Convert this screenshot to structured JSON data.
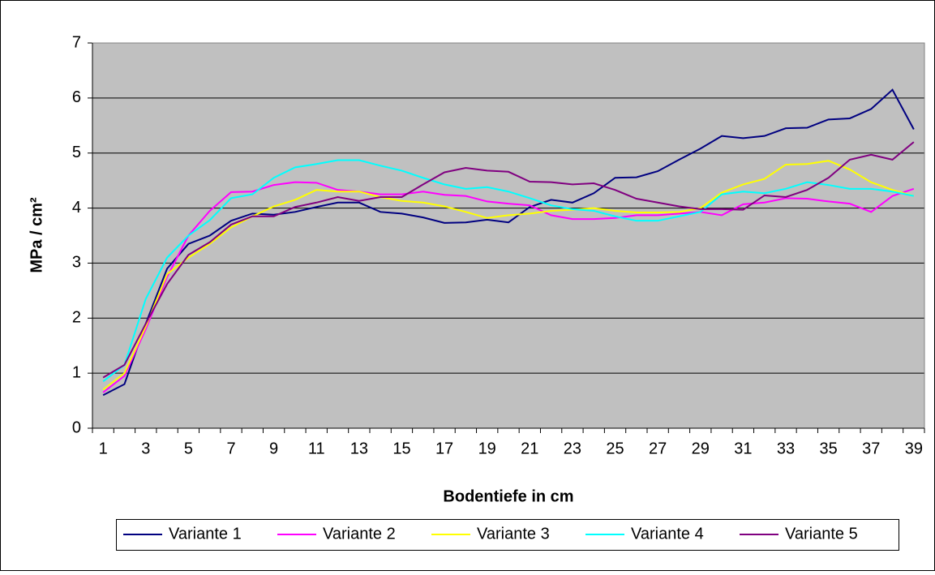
{
  "chart_data": {
    "type": "line",
    "y_label": "MPa / cm²",
    "x_label": "Bodentiefe in cm",
    "categories": [
      "1",
      null,
      "3",
      null,
      "5",
      null,
      "7",
      null,
      "9",
      null,
      "11",
      null,
      "13",
      null,
      "15",
      null,
      "17",
      null,
      "19",
      null,
      "21",
      null,
      "23",
      null,
      "25",
      null,
      "27",
      null,
      "29",
      null,
      "31",
      null,
      "33",
      null,
      "35",
      null,
      "37",
      null,
      "39"
    ],
    "ylim": [
      0,
      7
    ],
    "yticks": [
      0,
      1,
      2,
      3,
      4,
      5,
      6,
      7
    ],
    "grid": true,
    "legend": "bottom",
    "series": [
      {
        "name": "Variante 1",
        "color": "#000080",
        "values": [
          0.6,
          0.8,
          1.9,
          2.9,
          3.35,
          3.5,
          3.77,
          3.9,
          3.88,
          3.93,
          4.02,
          4.1,
          4.1,
          3.93,
          3.9,
          3.83,
          3.73,
          3.74,
          3.79,
          3.74,
          4.02,
          4.15,
          4.1,
          4.27,
          4.55,
          4.56,
          4.67,
          4.88,
          5.08,
          5.31,
          5.27,
          5.31,
          5.45,
          5.46,
          5.61,
          5.63,
          5.8,
          6.15,
          5.43
        ]
      },
      {
        "name": "Variante 2",
        "color": "#ff00ff",
        "values": [
          0.65,
          0.95,
          1.8,
          2.75,
          3.5,
          3.95,
          4.29,
          4.3,
          4.42,
          4.47,
          4.46,
          4.33,
          4.3,
          4.25,
          4.25,
          4.3,
          4.24,
          4.22,
          4.12,
          4.08,
          4.05,
          3.87,
          3.8,
          3.8,
          3.82,
          3.87,
          3.87,
          3.9,
          3.93,
          3.87,
          4.07,
          4.1,
          4.18,
          4.17,
          4.12,
          4.08,
          3.93,
          4.22,
          4.35
        ]
      },
      {
        "name": "Variante 3",
        "color": "#ffff00",
        "values": [
          0.7,
          1.0,
          1.85,
          2.8,
          3.1,
          3.35,
          3.65,
          3.85,
          4.03,
          4.15,
          4.33,
          4.3,
          4.3,
          4.2,
          4.13,
          4.1,
          4.03,
          3.93,
          3.82,
          3.87,
          3.9,
          3.95,
          3.97,
          4.0,
          3.95,
          3.92,
          3.92,
          3.93,
          4.0,
          4.28,
          4.43,
          4.53,
          4.79,
          4.8,
          4.86,
          4.7,
          4.47,
          4.33,
          4.22
        ]
      },
      {
        "name": "Variante 4",
        "color": "#00ffff",
        "values": [
          0.85,
          1.15,
          2.35,
          3.1,
          3.5,
          3.78,
          4.18,
          4.25,
          4.55,
          4.74,
          4.8,
          4.87,
          4.87,
          4.77,
          4.68,
          4.55,
          4.43,
          4.35,
          4.38,
          4.3,
          4.18,
          4.05,
          3.98,
          3.95,
          3.85,
          3.77,
          3.77,
          3.85,
          3.93,
          4.25,
          4.3,
          4.27,
          4.35,
          4.47,
          4.42,
          4.35,
          4.35,
          4.3,
          4.22
        ]
      },
      {
        "name": "Variante 5",
        "color": "#800080",
        "values": [
          0.92,
          1.15,
          1.9,
          2.62,
          3.15,
          3.38,
          3.7,
          3.85,
          3.85,
          4.02,
          4.1,
          4.2,
          4.13,
          4.2,
          4.2,
          4.43,
          4.65,
          4.73,
          4.68,
          4.66,
          4.48,
          4.47,
          4.43,
          4.45,
          4.33,
          4.17,
          4.1,
          4.03,
          3.98,
          3.98,
          3.97,
          4.23,
          4.2,
          4.33,
          4.55,
          4.88,
          4.97,
          4.88,
          5.2
        ]
      }
    ]
  }
}
